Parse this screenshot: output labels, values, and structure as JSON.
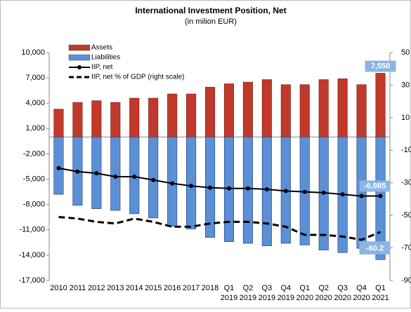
{
  "chart_data": {
    "type": "bar_line",
    "title": "International Investment Position, Net",
    "subtitle": "(in milion EUR)",
    "categories": [
      "2010",
      "2011",
      "2012",
      "2013",
      "2014",
      "2015",
      "2016",
      "2017",
      "2018",
      "Q1 2019",
      "Q2 2019",
      "Q3 2019",
      "Q4 2019",
      "Q1 2020",
      "Q2 2020",
      "Q3 2020",
      "Q4 2020",
      "Q1 2021"
    ],
    "series": [
      {
        "name": "Assets",
        "type": "bar",
        "color": "#c0392b",
        "values": [
          3300,
          4100,
          4300,
          4100,
          4600,
          4600,
          5100,
          5100,
          5900,
          6300,
          6500,
          6800,
          6200,
          6200,
          6800,
          6900,
          6200,
          7550
        ],
        "value_labels": [
          null,
          null,
          null,
          null,
          null,
          null,
          null,
          null,
          null,
          null,
          null,
          null,
          null,
          null,
          null,
          null,
          null,
          "7,550"
        ]
      },
      {
        "name": "Liabilities",
        "type": "bar",
        "color": "#5b8fd6",
        "values": [
          -6800,
          -8100,
          -8500,
          -8700,
          -9100,
          -9600,
          -10600,
          -10900,
          -11900,
          -12400,
          -12600,
          -12900,
          -12600,
          -12800,
          -13400,
          -13700,
          -13200,
          -14535
        ],
        "value_labels": [
          null,
          null,
          null,
          null,
          null,
          null,
          null,
          null,
          null,
          null,
          null,
          null,
          null,
          null,
          null,
          null,
          null,
          "-14,535"
        ]
      },
      {
        "name": "IIP, net",
        "type": "line",
        "color": "#000000",
        "values": [
          -3700,
          -4100,
          -4300,
          -4700,
          -4700,
          -5100,
          -5500,
          -5800,
          -6000,
          -6100,
          -6100,
          -6200,
          -6400,
          -6500,
          -6600,
          -6800,
          -7000,
          -6985
        ],
        "value_labels": [
          null,
          null,
          null,
          null,
          null,
          null,
          null,
          null,
          null,
          null,
          null,
          null,
          null,
          null,
          null,
          null,
          null,
          "-6,985"
        ]
      },
      {
        "name": "IIP, net % of GDP (right scale)",
        "type": "dashed",
        "axis": "y2",
        "color": "#000000",
        "values": [
          -51,
          -52,
          -54,
          -55,
          -52,
          -54,
          -57,
          -57,
          -55,
          -54,
          -54,
          -55,
          -57,
          -62,
          -62,
          -63,
          -65,
          -60.2
        ],
        "value_labels": [
          null,
          null,
          null,
          null,
          null,
          null,
          null,
          null,
          null,
          null,
          null,
          null,
          null,
          null,
          null,
          null,
          null,
          "-60.2"
        ]
      }
    ],
    "ylim": [
      -17000,
      10000
    ],
    "yticks": [
      {
        "value": -17000,
        "label": "-17,000"
      },
      {
        "value": -14000,
        "label": "-14,000"
      },
      {
        "value": -11000,
        "label": "-11,000"
      },
      {
        "value": -8000,
        "label": "-8,000"
      },
      {
        "value": -5000,
        "label": "-5,000"
      },
      {
        "value": -2000,
        "label": "-2,000"
      },
      {
        "value": 1000,
        "label": "1,000"
      },
      {
        "value": 4000,
        "label": "4,000"
      },
      {
        "value": 7000,
        "label": "7,000"
      },
      {
        "value": 10000,
        "label": "10,000"
      }
    ],
    "y2lim": [
      -90,
      50
    ],
    "y2ticks": [
      -90,
      -70,
      -50,
      -30,
      -10,
      10,
      30,
      50
    ],
    "grid": false,
    "legend": "top-left"
  }
}
